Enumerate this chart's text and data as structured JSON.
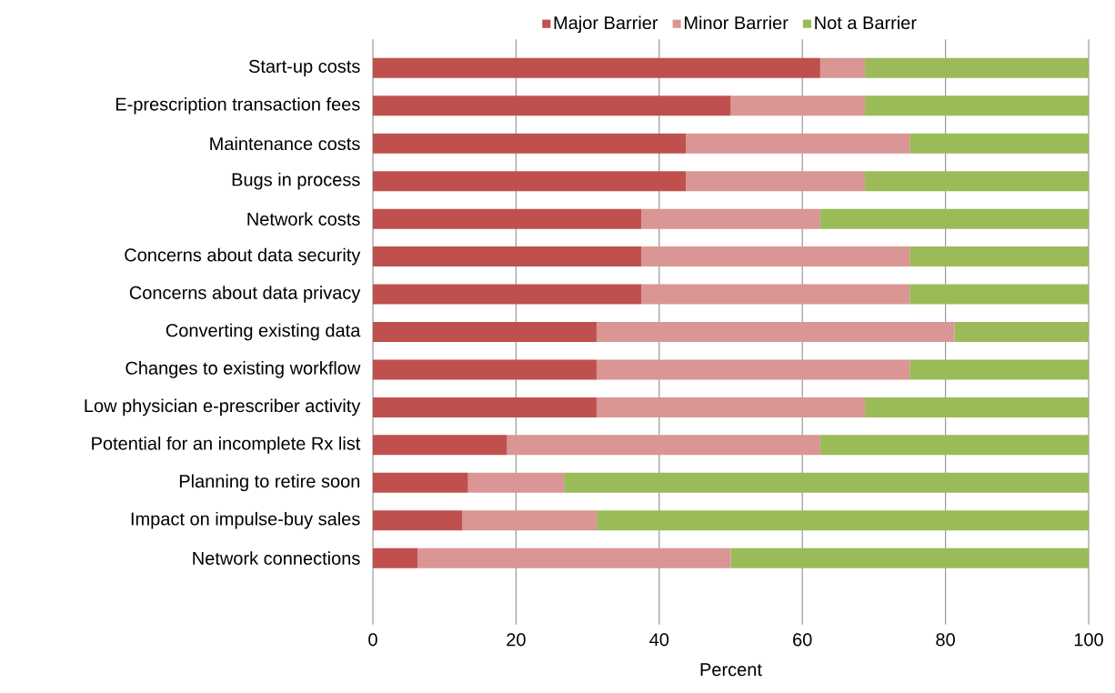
{
  "chart_data": {
    "type": "bar",
    "orientation": "horizontal",
    "stacked": true,
    "categories": [
      "Start-up costs",
      "E-prescription transaction fees",
      "Maintenance costs",
      "Bugs in process",
      "Network costs",
      "Concerns about data security",
      "Concerns about data privacy",
      "Converting existing data",
      "Changes to existing workflow",
      "Low physician e-prescriber activity",
      "Potential for an incomplete Rx list",
      "Planning to retire soon",
      "Impact on impulse-buy sales",
      "Network connections"
    ],
    "series": [
      {
        "name": "Major Barrier",
        "color": "#c0504d",
        "values": [
          62.5,
          50,
          43.75,
          43.75,
          37.5,
          37.5,
          37.5,
          31.25,
          31.25,
          31.25,
          18.75,
          13.3,
          12.5,
          6.25
        ]
      },
      {
        "name": "Minor Barrier",
        "color": "#d99694",
        "values": [
          6.25,
          18.75,
          31.25,
          25,
          25,
          37.5,
          37.5,
          50,
          43.75,
          37.5,
          43.75,
          13.4,
          18.75,
          43.75
        ]
      },
      {
        "name": "Not a Barrier",
        "color": "#9bbb59",
        "values": [
          31.25,
          31.25,
          25,
          31.25,
          37.5,
          25,
          25,
          18.75,
          25,
          31.25,
          37.5,
          73.3,
          68.75,
          50
        ]
      }
    ],
    "xlim": [
      0,
      100
    ],
    "xticks": [
      0,
      20,
      40,
      60,
      80,
      100
    ],
    "xlabel": "Percent",
    "grid": "x",
    "legend": "top"
  }
}
